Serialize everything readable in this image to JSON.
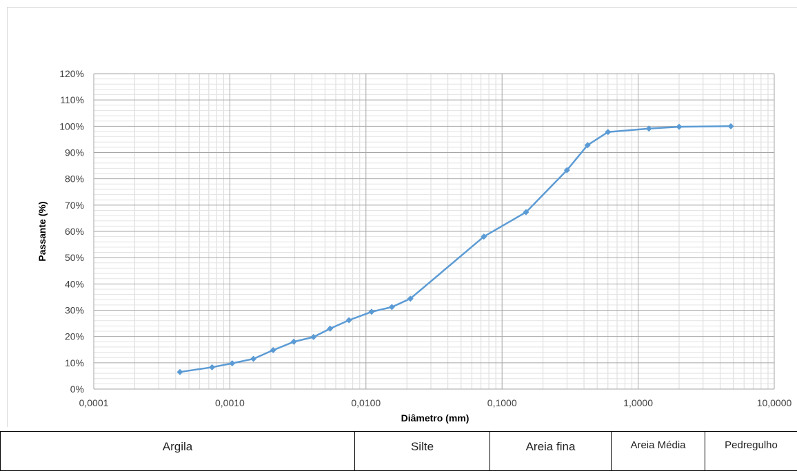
{
  "chart_data": {
    "type": "line",
    "xlabel": "Diâmetro (mm)",
    "ylabel": "Passante (%)",
    "x_scale": "log",
    "xlim": [
      0.0001,
      10
    ],
    "ylim": [
      0,
      120
    ],
    "x_tick_labels": [
      "0,0001",
      "0,0010",
      "0,0100",
      "0,1000",
      "1,0000",
      "10,0000"
    ],
    "y_tick_labels": [
      "0%",
      "10%",
      "20%",
      "30%",
      "40%",
      "50%",
      "60%",
      "70%",
      "80%",
      "90%",
      "100%",
      "110%",
      "120%"
    ],
    "grid": true,
    "marker": "diamond",
    "color": "#5b9bd5",
    "series": [
      {
        "x": [
          0.00043,
          0.00074,
          0.00104,
          0.00149,
          0.00208,
          0.00295,
          0.00412,
          0.00545,
          0.0075,
          0.011,
          0.0155,
          0.0212,
          0.0735,
          0.15,
          0.3,
          0.425,
          0.6,
          1.2,
          2.0,
          4.8
        ],
        "y": [
          6.5,
          8.3,
          9.8,
          11.5,
          14.8,
          18.0,
          19.8,
          23.0,
          26.2,
          29.4,
          31.2,
          34.4,
          58.0,
          67.3,
          83.3,
          92.8,
          97.8,
          99.1,
          99.8,
          100.0
        ]
      }
    ]
  },
  "classification": [
    {
      "label": "Argila"
    },
    {
      "label": "Silte"
    },
    {
      "label": "Areia fina"
    },
    {
      "label": "Areia Média"
    },
    {
      "label": "Pedregulho"
    }
  ]
}
